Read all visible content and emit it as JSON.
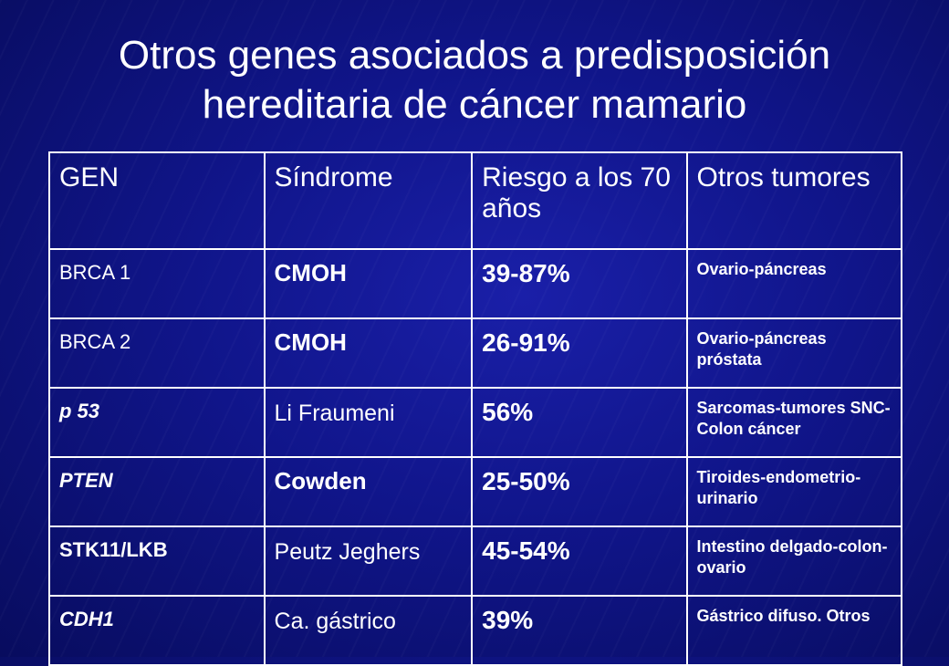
{
  "title": {
    "line1": "Otros genes asociados a predisposición",
    "line2": "hereditaria de cáncer mamario"
  },
  "table": {
    "headers": [
      "GEN",
      "Síndrome",
      "Riesgo a los 70 años",
      "Otros tumores"
    ],
    "rows": [
      {
        "gen": "BRCA 1",
        "sindrome": "CMOH",
        "riesgo": "39-87%",
        "otros": "Ovario-páncreas"
      },
      {
        "gen": "BRCA 2",
        "sindrome": "CMOH",
        "riesgo": "26-91%",
        "otros": "Ovario-páncreas próstata"
      },
      {
        "gen": "p 53",
        "sindrome": "Li Fraumeni",
        "riesgo": "56%",
        "otros": "Sarcomas-tumores SNC-Colon cáncer"
      },
      {
        "gen": "PTEN",
        "sindrome": "Cowden",
        "riesgo": "25-50%",
        "otros": "Tiroides-endometrio-urinario"
      },
      {
        "gen": "STK11/LKB",
        "sindrome": "Peutz Jeghers",
        "riesgo": "45-54%",
        "otros": "Intestino delgado-colon-ovario"
      },
      {
        "gen": "CDH1",
        "sindrome": "Ca. gástrico",
        "riesgo": "39%",
        "otros": "Gástrico difuso. Otros"
      }
    ]
  }
}
